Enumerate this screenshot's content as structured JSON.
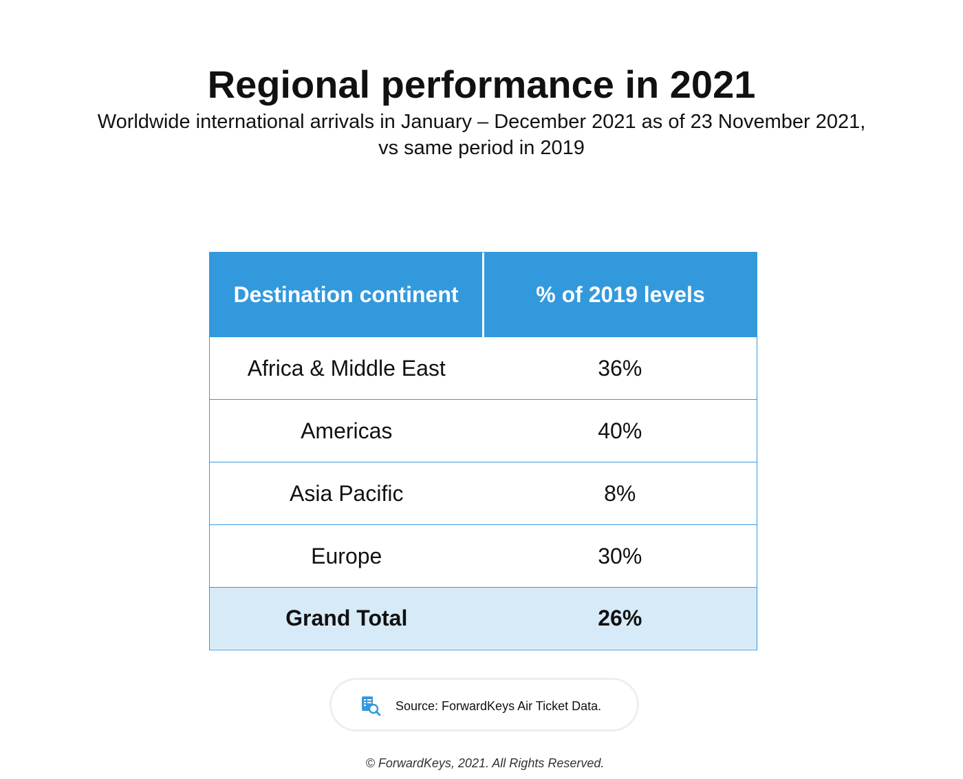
{
  "title": "Regional performance in 2021",
  "subtitle_line1": "Worldwide international arrivals in January – December 2021 as of 23 November 2021,",
  "subtitle_line2": "vs same period in 2019",
  "chart_data": {
    "type": "table",
    "columns": [
      "Destination continent",
      "% of 2019 levels"
    ],
    "rows": [
      {
        "continent": "Africa & Middle East",
        "value": "36%"
      },
      {
        "continent": "Americas",
        "value": "40%"
      },
      {
        "continent": "Asia Pacific",
        "value": "8%"
      },
      {
        "continent": "Europe",
        "value": "30%"
      }
    ],
    "total": {
      "label": "Grand Total",
      "value": "26%"
    }
  },
  "source": {
    "icon": "document-search-icon",
    "text": "Source: ForwardKeys Air Ticket Data."
  },
  "copyright": "© ForwardKeys, 2021. All Rights Reserved.",
  "colors": {
    "header_bg": "#3399dd",
    "total_bg": "#d6eaf7",
    "border": "#3399dd"
  }
}
